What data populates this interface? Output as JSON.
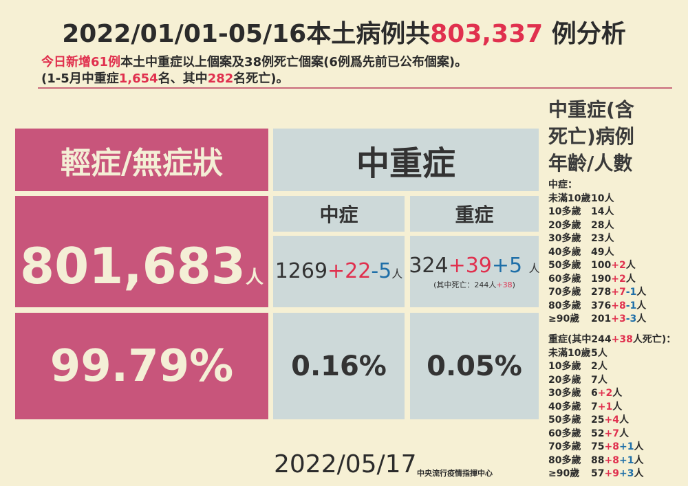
{
  "header": {
    "title_part1": "2022/01/01-05/16本土病例共",
    "title_number": "803,337",
    "title_part2": "例分析",
    "subtitle_line1": [
      "今日新增61例",
      "本土中重症以上個案及38例死亡個案(6例爲先前已公布個案)。"
    ],
    "subtitle_line2": [
      "(1-5月中重症",
      "1,654",
      "名、其中",
      "282",
      "名死亡)。"
    ]
  },
  "table": {
    "mild": {
      "header": "輕症/無症狀",
      "count": "801,683",
      "unit": "人",
      "percent": "99.79%"
    },
    "severe_group": {
      "header": "中重症"
    },
    "moderate": {
      "header": "中症",
      "count": "1269",
      "added": "+22",
      "change": "-5",
      "unit": "人",
      "percent": "0.16%"
    },
    "severe": {
      "header": "重症",
      "count": "324",
      "added": "+39",
      "change": "+5",
      "unit": "人",
      "death_note": [
        "(其中死亡：244人",
        "+38",
        ")"
      ],
      "percent": "0.05%"
    }
  },
  "side": {
    "title": [
      "中重症(含",
      "死亡)病例",
      "年齡/人數"
    ],
    "moderate": {
      "label": "中症：",
      "rows": [
        {
          "age": "未滿10歲",
          "count": "10",
          "unit": "人"
        },
        {
          "age": "10多歲",
          "count": "14",
          "unit": "人"
        },
        {
          "age": "20多歲",
          "count": "28",
          "unit": "人"
        },
        {
          "age": "30多歲",
          "count": "23",
          "unit": "人"
        },
        {
          "age": "40多歲",
          "count": "49",
          "unit": "人"
        },
        {
          "age": "50多歲",
          "count": "100",
          "added": "+2",
          "unit": "人"
        },
        {
          "age": "60多歲",
          "count": "190",
          "added": "+2",
          "unit": "人"
        },
        {
          "age": "70多歲",
          "count": "278",
          "added": "+7",
          "change": "-1",
          "unit": "人"
        },
        {
          "age": "80多歲",
          "count": "376",
          "added": "+8",
          "change": "-1",
          "unit": "人"
        },
        {
          "age": "≥90歲",
          "count": "201",
          "added": "+3",
          "change": "-3",
          "unit": "人"
        }
      ]
    },
    "severe": {
      "label": [
        "重症(其中244",
        "+38",
        "人死亡)："
      ],
      "rows": [
        {
          "age": "未滿10歲",
          "count": "5",
          "unit": "人"
        },
        {
          "age": "10多歲",
          "count": "2",
          "unit": "人"
        },
        {
          "age": "20多歲",
          "count": "7",
          "unit": "人"
        },
        {
          "age": "30多歲",
          "count": "6",
          "added": "+2",
          "unit": "人"
        },
        {
          "age": "40多歲",
          "count": "7",
          "added": "+1",
          "unit": "人"
        },
        {
          "age": "50多歲",
          "count": "25",
          "added": "+4",
          "unit": "人"
        },
        {
          "age": "60多歲",
          "count": "52",
          "added": "+7",
          "unit": "人"
        },
        {
          "age": "70多歲",
          "count": "75",
          "added": "+8",
          "change": "+1",
          "unit": "人"
        },
        {
          "age": "80多歲",
          "count": "88",
          "added": "+8",
          "change": "+1",
          "unit": "人"
        },
        {
          "age": "≥90歲",
          "count": "57",
          "added": "+9",
          "change": "+3",
          "unit": "人"
        }
      ]
    }
  },
  "footer": {
    "date": "2022/05/17",
    "organization": "中央流行疫情指揮中心"
  }
}
